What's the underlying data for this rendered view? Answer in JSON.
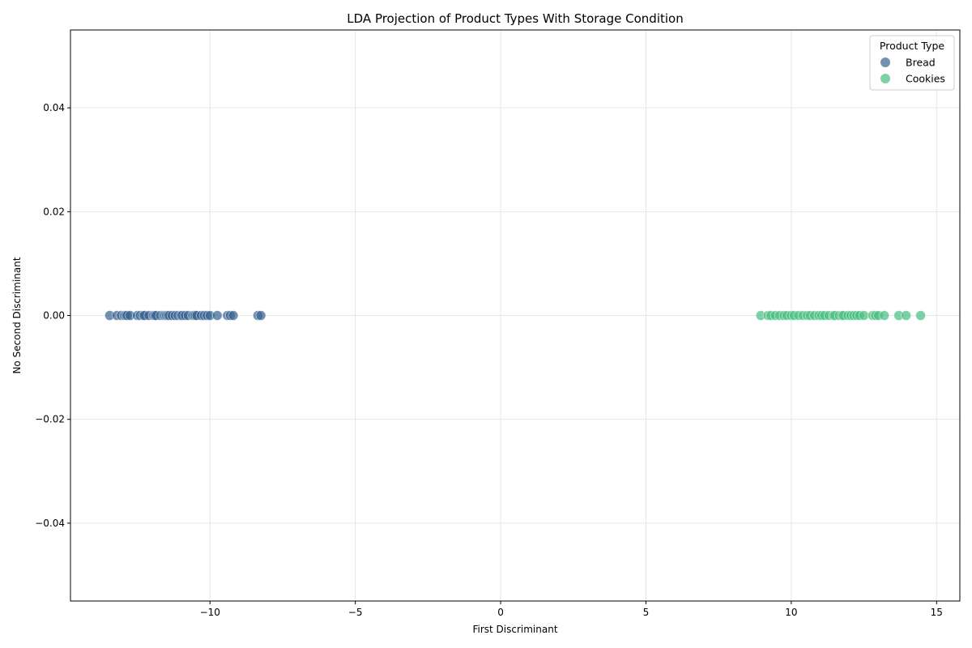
{
  "chart_data": {
    "type": "scatter",
    "title": "LDA Projection of Product Types With Storage Condition",
    "xlabel": "First Discriminant",
    "ylabel": "No Second Discriminant",
    "xlim": [
      -14.8,
      15.8
    ],
    "ylim": [
      -0.055,
      0.055
    ],
    "xticks": [
      -10,
      -5,
      0,
      5,
      10,
      15
    ],
    "yticks": [
      -0.04,
      -0.02,
      0.0,
      0.02,
      0.04
    ],
    "xtick_labels": [
      "−10",
      "−5",
      "0",
      "5",
      "10",
      "15"
    ],
    "ytick_labels": [
      "−0.04",
      "−0.02",
      "0.00",
      "0.02",
      "0.04"
    ],
    "grid": true,
    "legend": {
      "title": "Product Type",
      "position": "top-right"
    },
    "series": [
      {
        "name": "Bread",
        "color": "#3b6591",
        "x": [
          -13.45,
          -13.2,
          -13.05,
          -12.95,
          -12.9,
          -12.85,
          -12.75,
          -12.5,
          -12.4,
          -12.3,
          -12.25,
          -12.1,
          -11.95,
          -11.9,
          -11.85,
          -11.7,
          -11.6,
          -11.55,
          -11.5,
          -11.45,
          -11.4,
          -11.3,
          -11.2,
          -11.1,
          -11.0,
          -10.95,
          -10.85,
          -10.75,
          -10.6,
          -10.55,
          -10.5,
          -10.45,
          -10.3,
          -10.2,
          -10.1,
          -10.0,
          -9.75,
          -9.4,
          -9.3,
          -9.2,
          -8.35,
          -8.25
        ],
        "y": [
          0,
          0,
          0,
          0,
          0,
          0,
          0,
          0,
          0,
          0,
          0,
          0,
          0,
          0,
          0,
          0,
          0,
          0,
          0,
          0,
          0,
          0,
          0,
          0,
          0,
          0,
          0,
          0,
          0,
          0,
          0,
          0,
          0,
          0,
          0,
          0,
          0,
          0,
          0,
          0,
          0,
          0
        ]
      },
      {
        "name": "Cookies",
        "color": "#4cbf84",
        "x": [
          8.95,
          9.2,
          9.3,
          9.45,
          9.6,
          9.75,
          9.85,
          10.0,
          10.1,
          10.25,
          10.4,
          10.55,
          10.65,
          10.8,
          10.95,
          11.05,
          11.15,
          11.3,
          11.45,
          11.5,
          11.65,
          11.75,
          11.8,
          11.95,
          12.05,
          12.15,
          12.25,
          12.35,
          12.5,
          12.8,
          12.9,
          13.0,
          13.2,
          13.7,
          13.95,
          14.45
        ],
        "y": [
          0,
          0,
          0,
          0,
          0,
          0,
          0,
          0,
          0,
          0,
          0,
          0,
          0,
          0,
          0,
          0,
          0,
          0,
          0,
          0,
          0,
          0,
          0,
          0,
          0,
          0,
          0,
          0,
          0,
          0,
          0,
          0,
          0,
          0,
          0,
          0
        ]
      }
    ]
  }
}
